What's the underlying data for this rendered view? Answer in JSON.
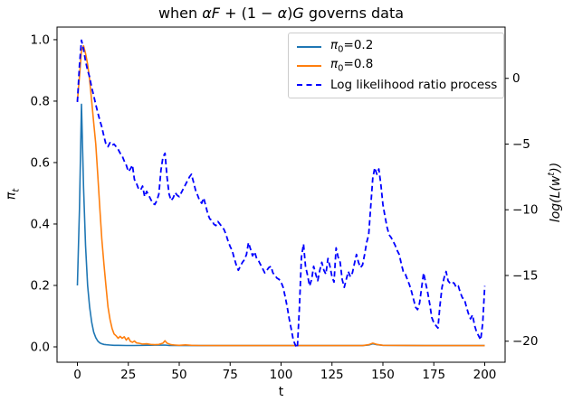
{
  "title": {
    "seg1": "when ",
    "seg2": "αF",
    "seg3": " + (1 − ",
    "seg4": "α",
    "seg5": ")",
    "seg6": "G",
    "seg7": " governs data",
    "full": "when αF + (1 − α)G governs data"
  },
  "axes": {
    "xlabel": "t",
    "ylabel_left": {
      "sym": "π",
      "sub": "t"
    },
    "ylabel_right": {
      "main1": "log(L(w",
      "sup": "t",
      "main2": "))"
    },
    "x_tick_labels": [
      "0",
      "25",
      "50",
      "75",
      "100",
      "125",
      "150",
      "175",
      "200"
    ],
    "y_left_tick_labels": [
      "0.0",
      "0.2",
      "0.4",
      "0.6",
      "0.8",
      "1.0"
    ],
    "y_right_tick_labels": [
      "0",
      "−5",
      "−10",
      "−15",
      "−20"
    ]
  },
  "legend": {
    "position": "upper right",
    "entries": [
      {
        "sym": "π",
        "sub": "0",
        "rest": "=0.2"
      },
      {
        "sym": "π",
        "sub": "0",
        "rest": "=0.8"
      },
      {
        "label": "Log likelihood ratio process"
      }
    ]
  },
  "colors": {
    "pi02": "#1f77b4",
    "pi08": "#ff7f0e",
    "loglik": "#0000ff",
    "spine": "#000000",
    "legend_edge": "#cccccc"
  },
  "chart_data": {
    "type": "line",
    "title": "when αF + (1 − α)G governs data",
    "xlabel": "t",
    "ylabel_left": "π_t",
    "ylabel_right": "log(L(w^t))",
    "xlim": [
      -10,
      210
    ],
    "ylim_left": [
      -0.05,
      1.041
    ],
    "ylim_right": [
      -21.6,
      3.9
    ],
    "x_ticks": [
      0,
      25,
      50,
      75,
      100,
      125,
      150,
      175,
      200
    ],
    "y_left_ticks": [
      0.0,
      0.2,
      0.4,
      0.6,
      0.8,
      1.0
    ],
    "y_right_ticks": [
      0,
      -5,
      -10,
      -15,
      -20
    ],
    "grid": false,
    "legend_position": "upper right",
    "series": [
      {
        "name": "π0=0.2",
        "axis": "left",
        "color": "#1f77b4",
        "style": "solid",
        "points": [
          [
            0,
            0.2
          ],
          [
            1,
            0.45
          ],
          [
            2,
            0.79
          ],
          [
            3,
            0.52
          ],
          [
            4,
            0.33
          ],
          [
            5,
            0.2
          ],
          [
            6,
            0.13
          ],
          [
            7,
            0.08
          ],
          [
            8,
            0.048
          ],
          [
            9,
            0.03
          ],
          [
            10,
            0.019
          ],
          [
            11,
            0.013
          ],
          [
            12,
            0.01
          ],
          [
            13,
            0.008
          ],
          [
            14,
            0.007
          ],
          [
            16,
            0.006
          ],
          [
            18,
            0.005
          ],
          [
            20,
            0.005
          ],
          [
            24,
            0.0045
          ],
          [
            28,
            0.0045
          ],
          [
            43,
            0.006
          ],
          [
            45,
            0.0045
          ],
          [
            60,
            0.004
          ],
          [
            100,
            0.004
          ],
          [
            140,
            0.004
          ],
          [
            143,
            0.006
          ],
          [
            145,
            0.01
          ],
          [
            147,
            0.007
          ],
          [
            150,
            0.005
          ],
          [
            170,
            0.004
          ],
          [
            200,
            0.004
          ]
        ]
      },
      {
        "name": "π0=0.8",
        "axis": "left",
        "color": "#ff7f0e",
        "style": "solid",
        "points": [
          [
            0,
            0.8
          ],
          [
            1,
            0.88
          ],
          [
            2,
            0.965
          ],
          [
            3,
            0.98
          ],
          [
            4,
            0.955
          ],
          [
            5,
            0.92
          ],
          [
            6,
            0.87
          ],
          [
            7,
            0.8
          ],
          [
            8,
            0.73
          ],
          [
            9,
            0.66
          ],
          [
            10,
            0.56
          ],
          [
            11,
            0.45
          ],
          [
            12,
            0.35
          ],
          [
            13,
            0.27
          ],
          [
            14,
            0.2
          ],
          [
            15,
            0.13
          ],
          [
            16,
            0.09
          ],
          [
            17,
            0.06
          ],
          [
            18,
            0.042
          ],
          [
            19,
            0.036
          ],
          [
            20,
            0.028
          ],
          [
            21,
            0.034
          ],
          [
            22,
            0.028
          ],
          [
            23,
            0.033
          ],
          [
            24,
            0.022
          ],
          [
            25,
            0.03
          ],
          [
            26,
            0.018
          ],
          [
            27,
            0.015
          ],
          [
            28,
            0.019
          ],
          [
            29,
            0.013
          ],
          [
            30,
            0.012
          ],
          [
            32,
            0.009
          ],
          [
            34,
            0.01
          ],
          [
            36,
            0.008
          ],
          [
            38,
            0.007
          ],
          [
            40,
            0.008
          ],
          [
            42,
            0.012
          ],
          [
            43,
            0.02
          ],
          [
            44,
            0.012
          ],
          [
            46,
            0.007
          ],
          [
            48,
            0.006
          ],
          [
            50,
            0.005
          ],
          [
            53,
            0.0065
          ],
          [
            56,
            0.005
          ],
          [
            60,
            0.0045
          ],
          [
            70,
            0.004
          ],
          [
            100,
            0.004
          ],
          [
            140,
            0.004
          ],
          [
            143,
            0.007
          ],
          [
            145,
            0.012
          ],
          [
            147,
            0.008
          ],
          [
            150,
            0.005
          ],
          [
            170,
            0.004
          ],
          [
            200,
            0.004
          ]
        ]
      },
      {
        "name": "Log likelihood ratio process",
        "axis": "right",
        "color": "#0000ff",
        "style": "dashed",
        "points": [
          [
            0,
            -1.8
          ],
          [
            1,
            1.0
          ],
          [
            2,
            2.9
          ],
          [
            3,
            2.2
          ],
          [
            4,
            1.3
          ],
          [
            5,
            0.6
          ],
          [
            6,
            0.1
          ],
          [
            7,
            -0.7
          ],
          [
            8,
            -1.3
          ],
          [
            9,
            -2.0
          ],
          [
            10,
            -2.6
          ],
          [
            11,
            -3.2
          ],
          [
            12,
            -3.7
          ],
          [
            13,
            -4.4
          ],
          [
            14,
            -5.0
          ],
          [
            15,
            -5.2
          ],
          [
            16,
            -4.9
          ],
          [
            17,
            -5.1
          ],
          [
            18,
            -5.0
          ],
          [
            19,
            -5.2
          ],
          [
            20,
            -5.4
          ],
          [
            21,
            -5.7
          ],
          [
            22,
            -5.9
          ],
          [
            23,
            -6.3
          ],
          [
            24,
            -6.6
          ],
          [
            25,
            -7.1
          ],
          [
            26,
            -6.9
          ],
          [
            27,
            -6.6
          ],
          [
            28,
            -7.7
          ],
          [
            29,
            -8.0
          ],
          [
            30,
            -8.4
          ],
          [
            31,
            -8.5
          ],
          [
            32,
            -8.2
          ],
          [
            33,
            -9.0
          ],
          [
            34,
            -8.6
          ],
          [
            35,
            -8.9
          ],
          [
            36,
            -9.2
          ],
          [
            37,
            -9.5
          ],
          [
            38,
            -9.6
          ],
          [
            39,
            -9.3
          ],
          [
            40,
            -8.8
          ],
          [
            41,
            -7.0
          ],
          [
            42,
            -6.0
          ],
          [
            43,
            -5.7
          ],
          [
            44,
            -7.5
          ],
          [
            45,
            -8.8
          ],
          [
            46,
            -9.3
          ],
          [
            47,
            -9.1
          ],
          [
            48,
            -8.7
          ],
          [
            49,
            -8.9
          ],
          [
            50,
            -9.0
          ],
          [
            51,
            -8.7
          ],
          [
            52,
            -8.4
          ],
          [
            53,
            -8.1
          ],
          [
            54,
            -7.8
          ],
          [
            55,
            -7.5
          ],
          [
            56,
            -7.3
          ],
          [
            57,
            -7.9
          ],
          [
            58,
            -8.5
          ],
          [
            59,
            -8.9
          ],
          [
            60,
            -9.3
          ],
          [
            61,
            -9.5
          ],
          [
            62,
            -9.1
          ],
          [
            63,
            -9.7
          ],
          [
            64,
            -10.3
          ],
          [
            65,
            -10.7
          ],
          [
            66,
            -10.8
          ],
          [
            67,
            -11.1
          ],
          [
            68,
            -11.2
          ],
          [
            69,
            -10.9
          ],
          [
            70,
            -11.1
          ],
          [
            71,
            -11.3
          ],
          [
            72,
            -11.5
          ],
          [
            73,
            -11.9
          ],
          [
            74,
            -12.4
          ],
          [
            75,
            -12.8
          ],
          [
            76,
            -13.1
          ],
          [
            77,
            -13.7
          ],
          [
            78,
            -14.2
          ],
          [
            79,
            -14.6
          ],
          [
            80,
            -14.3
          ],
          [
            81,
            -14.0
          ],
          [
            82,
            -13.8
          ],
          [
            83,
            -13.4
          ],
          [
            84,
            -12.5
          ],
          [
            85,
            -13.0
          ],
          [
            86,
            -13.5
          ],
          [
            87,
            -13.2
          ],
          [
            88,
            -13.7
          ],
          [
            89,
            -13.9
          ],
          [
            90,
            -14.2
          ],
          [
            91,
            -14.5
          ],
          [
            92,
            -14.8
          ],
          [
            93,
            -14.6
          ],
          [
            94,
            -14.4
          ],
          [
            95,
            -14.3
          ],
          [
            96,
            -14.8
          ],
          [
            97,
            -15.0
          ],
          [
            98,
            -15.2
          ],
          [
            99,
            -15.3
          ],
          [
            100,
            -15.5
          ],
          [
            101,
            -15.9
          ],
          [
            102,
            -16.6
          ],
          [
            103,
            -17.4
          ],
          [
            104,
            -18.3
          ],
          [
            105,
            -19.1
          ],
          [
            106,
            -19.9
          ],
          [
            107,
            -20.3
          ],
          [
            108,
            -20.5
          ],
          [
            109,
            -17.4
          ],
          [
            110,
            -13.6
          ],
          [
            111,
            -12.6
          ],
          [
            112,
            -14.3
          ],
          [
            113,
            -15.0
          ],
          [
            114,
            -15.8
          ],
          [
            115,
            -15.3
          ],
          [
            116,
            -14.3
          ],
          [
            117,
            -14.9
          ],
          [
            118,
            -15.4
          ],
          [
            119,
            -14.6
          ],
          [
            120,
            -14.0
          ],
          [
            121,
            -14.6
          ],
          [
            122,
            -14.9
          ],
          [
            123,
            -13.7
          ],
          [
            124,
            -14.3
          ],
          [
            125,
            -15.1
          ],
          [
            126,
            -15.5
          ],
          [
            127,
            -12.9
          ],
          [
            128,
            -13.6
          ],
          [
            129,
            -14.0
          ],
          [
            130,
            -15.3
          ],
          [
            131,
            -15.9
          ],
          [
            132,
            -15.3
          ],
          [
            133,
            -14.7
          ],
          [
            134,
            -15.1
          ],
          [
            135,
            -14.8
          ],
          [
            136,
            -14.1
          ],
          [
            137,
            -13.4
          ],
          [
            138,
            -14.0
          ],
          [
            139,
            -14.4
          ],
          [
            140,
            -14.2
          ],
          [
            141,
            -13.4
          ],
          [
            142,
            -12.5
          ],
          [
            143,
            -11.9
          ],
          [
            144,
            -9.8
          ],
          [
            145,
            -7.6
          ],
          [
            146,
            -6.8
          ],
          [
            147,
            -7.3
          ],
          [
            148,
            -6.9
          ],
          [
            149,
            -8.1
          ],
          [
            150,
            -9.6
          ],
          [
            151,
            -10.5
          ],
          [
            152,
            -11.3
          ],
          [
            153,
            -11.9
          ],
          [
            154,
            -12.1
          ],
          [
            155,
            -12.4
          ],
          [
            156,
            -12.7
          ],
          [
            157,
            -13.1
          ],
          [
            158,
            -13.4
          ],
          [
            159,
            -14.1
          ],
          [
            160,
            -14.7
          ],
          [
            161,
            -14.9
          ],
          [
            162,
            -15.3
          ],
          [
            163,
            -15.7
          ],
          [
            164,
            -16.2
          ],
          [
            165,
            -16.8
          ],
          [
            166,
            -17.4
          ],
          [
            167,
            -17.6
          ],
          [
            168,
            -17.1
          ],
          [
            169,
            -15.9
          ],
          [
            170,
            -14.8
          ],
          [
            171,
            -15.6
          ],
          [
            172,
            -16.3
          ],
          [
            173,
            -17.2
          ],
          [
            174,
            -18.2
          ],
          [
            175,
            -18.6
          ],
          [
            176,
            -18.8
          ],
          [
            177,
            -19.0
          ],
          [
            178,
            -17.3
          ],
          [
            179,
            -15.9
          ],
          [
            180,
            -15.2
          ],
          [
            181,
            -14.7
          ],
          [
            182,
            -15.4
          ],
          [
            183,
            -15.6
          ],
          [
            184,
            -15.5
          ],
          [
            185,
            -15.6
          ],
          [
            186,
            -15.9
          ],
          [
            187,
            -15.8
          ],
          [
            188,
            -16.3
          ],
          [
            189,
            -16.7
          ],
          [
            190,
            -16.8
          ],
          [
            191,
            -17.4
          ],
          [
            192,
            -17.9
          ],
          [
            193,
            -18.3
          ],
          [
            194,
            -18.0
          ],
          [
            195,
            -18.8
          ],
          [
            196,
            -19.3
          ],
          [
            197,
            -19.6
          ],
          [
            198,
            -19.9
          ],
          [
            199,
            -18.6
          ],
          [
            200,
            -15.8
          ]
        ]
      }
    ]
  }
}
